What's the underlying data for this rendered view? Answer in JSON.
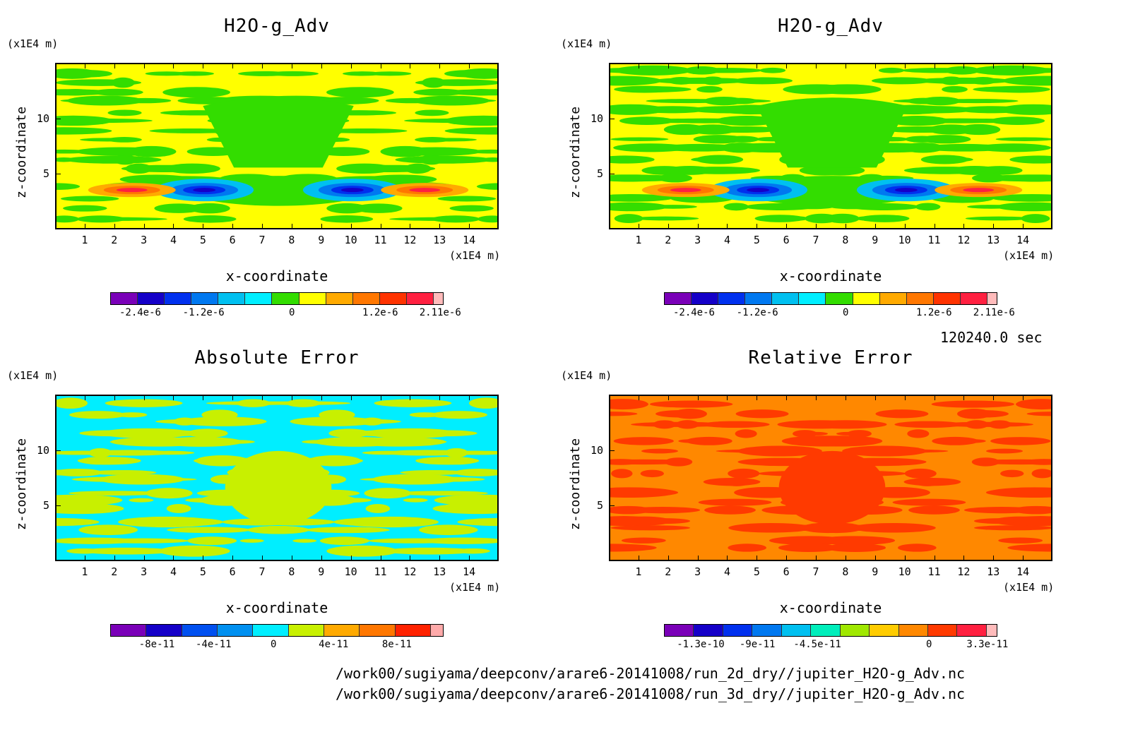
{
  "panels": [
    {
      "title": "H2O-g_Adv",
      "zunit": "(x1E4 m)",
      "xunit": "(x1E4 m)",
      "xlabel": "x-coordinate",
      "ylabel": "z-coordinate",
      "bg": "#ffff00",
      "patches": "#33dd00",
      "cbar_colors": [
        "#7a00b8",
        "#1500c8",
        "#0030ee",
        "#0078f0",
        "#00c0f0",
        "#00eeff",
        "#33dd00",
        "#ffff00",
        "#ffaa00",
        "#ff7700",
        "#ff3300",
        "#ff2040",
        "#ffbbbb"
      ],
      "cbar_labels": [
        "-2.4e-6",
        "-1.2e-6",
        "0",
        "1.2e-6",
        "2.11e-6"
      ]
    },
    {
      "title": "H2O-g_Adv",
      "zunit": "(x1E4 m)",
      "xunit": "(x1E4 m)",
      "xlabel": "x-coordinate",
      "ylabel": "z-coordinate",
      "bg": "#ffff00",
      "patches": "#33dd00",
      "cbar_colors": [
        "#7a00b8",
        "#1500c8",
        "#0030ee",
        "#0078f0",
        "#00c0f0",
        "#00eeff",
        "#33dd00",
        "#ffff00",
        "#ffaa00",
        "#ff7700",
        "#ff3300",
        "#ff2040",
        "#ffbbbb"
      ],
      "cbar_labels": [
        "-2.4e-6",
        "-1.2e-6",
        "0",
        "1.2e-6",
        "2.11e-6"
      ]
    },
    {
      "title": "Absolute Error",
      "zunit": "(x1E4 m)",
      "xunit": "(x1E4 m)",
      "xlabel": "x-coordinate",
      "ylabel": "z-coordinate",
      "bg": "#00eeff",
      "patches": "#c8f000",
      "cbar_colors": [
        "#7a00b8",
        "#1500c8",
        "#0050f0",
        "#0090f0",
        "#00eeff",
        "#c8f000",
        "#ffaa00",
        "#ff7700",
        "#ff2200",
        "#ffaaaa"
      ],
      "cbar_labels": [
        "-8e-11",
        "-4e-11",
        "0",
        "4e-11",
        "8e-11"
      ]
    },
    {
      "title": "Relative Error",
      "zunit": "(x1E4 m)",
      "xunit": "(x1E4 m)",
      "xlabel": "x-coordinate",
      "ylabel": "z-coordinate",
      "bg": "#ff8800",
      "patches": "#ff3a00",
      "cbar_colors": [
        "#7a00b8",
        "#1500c8",
        "#0030ee",
        "#0078f0",
        "#00c0f0",
        "#00eebb",
        "#a0e800",
        "#ffcc00",
        "#ff8800",
        "#ff3a00",
        "#ff2040",
        "#ffbbbb"
      ],
      "cbar_labels": [
        "-1.3e-10",
        "-9e-11",
        "-4.5e-11",
        "0",
        "3.3e-11"
      ]
    }
  ],
  "time_label": "120240.0 sec",
  "files": [
    "/work00/sugiyama/deepconv/arare6-20141008/run_2d_dry//jupiter_H2O-g_Adv.nc",
    "/work00/sugiyama/deepconv/arare6-20141008/run_3d_dry//jupiter_H2O-g_Adv.nc"
  ],
  "chart_data": [
    {
      "type": "heatmap",
      "title": "H2O-g_Adv",
      "xlabel": "x-coordinate",
      "ylabel": "z-coordinate",
      "xunit": "(x1E4 m)",
      "zunit": "(x1E4 m)",
      "xticks": [
        1,
        2,
        3,
        4,
        5,
        6,
        7,
        8,
        9,
        10,
        11,
        12,
        13,
        14
      ],
      "yticks": [
        5,
        10
      ],
      "xlim": [
        0,
        15
      ],
      "ylim": [
        0,
        15
      ],
      "colorbar_ticks": [
        "-2.4e-6",
        "-1.2e-6",
        "0",
        "1.2e-6",
        "2.11e-6"
      ]
    },
    {
      "type": "heatmap",
      "title": "H2O-g_Adv",
      "xlabel": "x-coordinate",
      "ylabel": "z-coordinate",
      "xunit": "(x1E4 m)",
      "zunit": "(x1E4 m)",
      "xticks": [
        1,
        2,
        3,
        4,
        5,
        6,
        7,
        8,
        9,
        10,
        11,
        12,
        13,
        14
      ],
      "yticks": [
        5,
        10
      ],
      "xlim": [
        0,
        15
      ],
      "ylim": [
        0,
        15
      ],
      "colorbar_ticks": [
        "-2.4e-6",
        "-1.2e-6",
        "0",
        "1.2e-6",
        "2.11e-6"
      ]
    },
    {
      "type": "heatmap",
      "title": "Absolute Error",
      "xlabel": "x-coordinate",
      "ylabel": "z-coordinate",
      "xunit": "(x1E4 m)",
      "zunit": "(x1E4 m)",
      "xticks": [
        1,
        2,
        3,
        4,
        5,
        6,
        7,
        8,
        9,
        10,
        11,
        12,
        13,
        14
      ],
      "yticks": [
        5,
        10
      ],
      "xlim": [
        0,
        15
      ],
      "ylim": [
        0,
        15
      ],
      "colorbar_ticks": [
        "-8e-11",
        "-4e-11",
        "0",
        "4e-11",
        "8e-11"
      ]
    },
    {
      "type": "heatmap",
      "title": "Relative Error",
      "xlabel": "x-coordinate",
      "ylabel": "z-coordinate",
      "xunit": "(x1E4 m)",
      "zunit": "(x1E4 m)",
      "xticks": [
        1,
        2,
        3,
        4,
        5,
        6,
        7,
        8,
        9,
        10,
        11,
        12,
        13,
        14
      ],
      "yticks": [
        5,
        10
      ],
      "xlim": [
        0,
        15
      ],
      "ylim": [
        0,
        15
      ],
      "colorbar_ticks": [
        "-1.3e-10",
        "-9e-11",
        "-4.5e-11",
        "0",
        "3.3e-11"
      ]
    }
  ]
}
